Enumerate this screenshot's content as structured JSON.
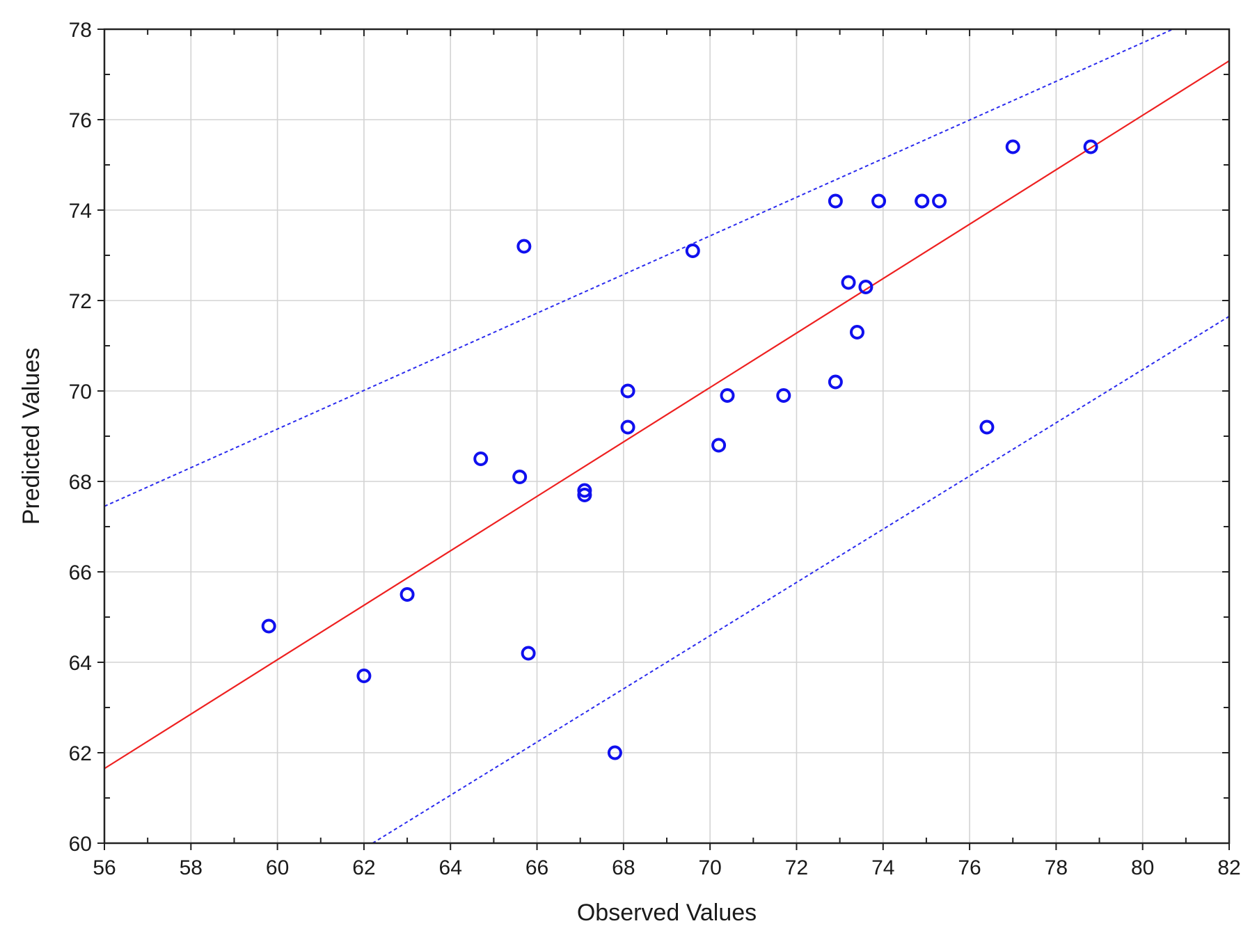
{
  "chart_data": {
    "type": "scatter",
    "xlabel": "Observed Values",
    "ylabel": "Predicted Values",
    "xlim": [
      56,
      82
    ],
    "ylim": [
      60,
      78
    ],
    "x_ticks": [
      56,
      58,
      60,
      62,
      64,
      66,
      68,
      70,
      72,
      74,
      76,
      78,
      80,
      82
    ],
    "y_ticks": [
      60,
      62,
      64,
      66,
      68,
      70,
      72,
      74,
      76,
      78
    ],
    "grid": true,
    "colors": {
      "points": "#1010ee",
      "fit_line": "#ee2020",
      "confidence_bands": "#2a2aee",
      "grid": "#d3d3d3",
      "axes": "#222222"
    },
    "points": [
      {
        "x": 59.8,
        "y": 64.8
      },
      {
        "x": 62.0,
        "y": 63.7
      },
      {
        "x": 63.0,
        "y": 65.5
      },
      {
        "x": 64.7,
        "y": 68.5
      },
      {
        "x": 65.6,
        "y": 68.1
      },
      {
        "x": 65.7,
        "y": 73.2
      },
      {
        "x": 65.8,
        "y": 64.2
      },
      {
        "x": 67.1,
        "y": 67.8
      },
      {
        "x": 67.1,
        "y": 67.7
      },
      {
        "x": 67.8,
        "y": 62.0
      },
      {
        "x": 68.1,
        "y": 69.2
      },
      {
        "x": 68.1,
        "y": 70.0
      },
      {
        "x": 69.6,
        "y": 73.1
      },
      {
        "x": 70.2,
        "y": 68.8
      },
      {
        "x": 70.4,
        "y": 69.9
      },
      {
        "x": 71.7,
        "y": 69.9
      },
      {
        "x": 72.9,
        "y": 70.2
      },
      {
        "x": 72.9,
        "y": 74.2
      },
      {
        "x": 73.2,
        "y": 72.4
      },
      {
        "x": 73.4,
        "y": 71.3
      },
      {
        "x": 73.6,
        "y": 72.3
      },
      {
        "x": 73.9,
        "y": 74.2
      },
      {
        "x": 74.9,
        "y": 74.2
      },
      {
        "x": 74.9,
        "y": 74.2
      },
      {
        "x": 75.3,
        "y": 74.2
      },
      {
        "x": 76.4,
        "y": 69.2
      },
      {
        "x": 77.0,
        "y": 75.4
      },
      {
        "x": 78.8,
        "y": 75.4
      }
    ],
    "fit_line": {
      "x": [
        56,
        82
      ],
      "y": [
        61.65,
        77.3
      ]
    },
    "upper_band": {
      "x": [
        56,
        80.7
      ],
      "y": [
        67.45,
        78.0
      ]
    },
    "lower_band": {
      "x": [
        62.2,
        82
      ],
      "y": [
        60.0,
        71.65
      ]
    }
  }
}
